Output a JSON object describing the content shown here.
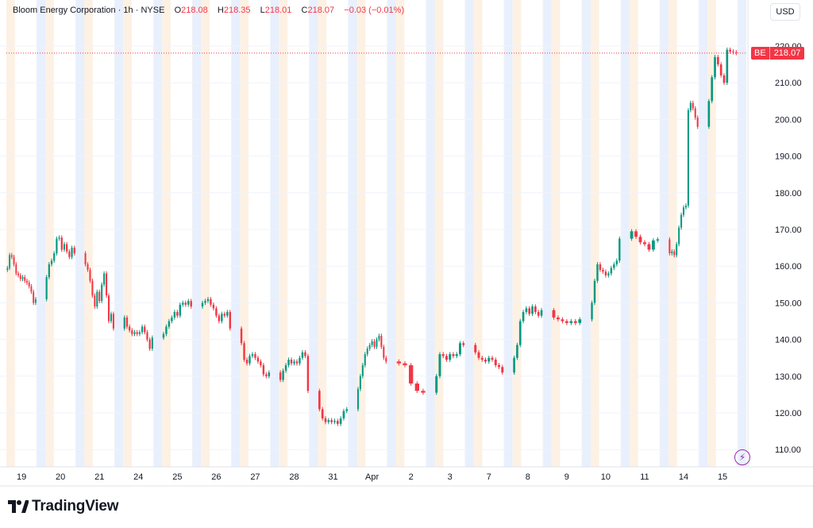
{
  "legend": {
    "name": "Bloom Energy Corporation",
    "interval": "1h",
    "exchange": "NYSE",
    "open_label": "O",
    "open": "218.08",
    "high_label": "H",
    "high": "218.35",
    "low_label": "L",
    "low": "218.01",
    "close_label": "C",
    "close": "218.07",
    "change": "−0.03 (−0.01%)"
  },
  "currency": "USD",
  "brand": "TradingView",
  "last_price_tag": {
    "symbol": "BE",
    "price": "218.07"
  },
  "colors": {
    "up": "#089981",
    "down": "#f23645",
    "session_pre": "#e8effd",
    "session_post": "#fdf1e4",
    "grid": "#f0f3fa"
  },
  "chart_data": {
    "type": "candlestick",
    "title": "Bloom Energy Corporation",
    "ylim": [
      105,
      222
    ],
    "y_ticks": [
      110,
      120,
      130,
      140,
      150,
      160,
      170,
      180,
      190,
      200,
      210,
      220
    ],
    "y_tick_labels": [
      "110.00",
      "120.00",
      "130.00",
      "140.00",
      "150.00",
      "160.00",
      "170.00",
      "180.00",
      "190.00",
      "200.00",
      "210.00",
      "220.00"
    ],
    "x_tick_labels": [
      "19",
      "20",
      "21",
      "24",
      "25",
      "26",
      "27",
      "28",
      "31",
      "Apr",
      "2",
      "3",
      "7",
      "8",
      "9",
      "10",
      "11",
      "14",
      "15"
    ],
    "last_price": 218.07,
    "sessions_count": 19,
    "days": [
      {
        "label": "19",
        "closes": [
          159.5,
          163.0,
          162.5,
          160.5,
          158.0,
          157.5,
          156.5,
          157.0,
          156.0,
          155.5,
          154.5,
          153.0,
          150.0,
          151.0
        ]
      },
      {
        "label": "20",
        "closes": [
          157.0,
          160.5,
          161.5,
          163.5,
          167.5,
          167.8,
          164.5,
          166.0,
          164.0,
          162.5,
          165.0,
          163.5
        ]
      },
      {
        "label": "21",
        "closes": [
          160.5,
          159.0,
          156.0,
          152.0,
          149.0,
          153.0,
          150.5,
          155.0,
          158.0,
          152.0,
          145.0,
          147.0,
          143.0
        ]
      },
      {
        "label": "24",
        "closes": [
          146.0,
          143.5,
          142.5,
          141.5,
          142.0,
          141.5,
          142.0,
          143.5,
          142.0,
          140.0,
          137.5,
          140.5
        ]
      },
      {
        "label": "25",
        "closes": [
          141.5,
          143.5,
          145.0,
          146.0,
          147.5,
          146.5,
          149.5,
          150.0,
          149.5,
          150.5,
          149.0
        ]
      },
      {
        "label": "26",
        "closes": [
          150.0,
          150.5,
          151.0,
          149.5,
          148.5,
          146.5,
          145.0,
          147.0,
          146.5,
          147.5,
          143.0
        ]
      },
      {
        "label": "27",
        "closes": [
          139.0,
          134.5,
          133.5,
          135.5,
          136.0,
          135.0,
          134.0,
          133.0,
          130.5,
          130.0,
          131.0
        ]
      },
      {
        "label": "28",
        "closes": [
          129.0,
          131.5,
          133.0,
          134.5,
          133.5,
          134.0,
          133.5,
          135.0,
          136.5,
          135.5,
          126.0
        ]
      },
      {
        "label": "31",
        "closes": [
          121.0,
          118.5,
          117.5,
          118.0,
          117.5,
          117.8,
          117.0,
          118.5,
          120.5,
          121.0
        ]
      },
      {
        "label": "Apr",
        "closes": [
          126.5,
          130.0,
          133.0,
          136.0,
          137.5,
          138.5,
          139.5,
          138.0,
          140.0,
          141.0,
          138.0,
          135.0,
          134.0
        ]
      },
      {
        "label": "2",
        "closes": [
          133.5,
          133.0,
          128.0,
          126.0,
          125.5
        ]
      },
      {
        "label": "3",
        "closes": [
          130.0,
          136.0,
          135.5,
          134.5,
          136.0,
          135.5,
          136.0,
          139.0,
          138.5
        ]
      },
      {
        "label": "7",
        "closes": [
          136.5,
          135.0,
          134.5,
          134.0,
          135.0,
          134.5,
          133.0,
          132.5,
          131.0
        ]
      },
      {
        "label": "8",
        "closes": [
          135.0,
          138.5,
          145.0,
          147.5,
          148.5,
          147.0,
          149.0,
          147.5,
          146.5,
          148.0
        ]
      },
      {
        "label": "9",
        "closes": [
          146.0,
          145.5,
          145.0,
          144.5,
          145.0,
          144.5,
          145.5
        ]
      },
      {
        "label": "10",
        "closes": [
          150.0,
          156.0,
          160.5,
          159.0,
          158.5,
          157.5,
          158.0,
          159.5,
          160.5,
          161.5,
          167.5
        ]
      },
      {
        "label": "11",
        "closes": [
          169.5,
          168.0,
          166.5,
          166.0,
          164.5,
          167.0,
          167.3
        ]
      },
      {
        "label": "14",
        "closes": [
          163.5,
          164.0,
          163.0,
          166.0,
          170.5,
          174.0,
          176.0,
          176.5,
          202.5,
          204.5,
          203.0,
          200.5,
          198.0
        ]
      },
      {
        "label": "15",
        "closes": [
          205.0,
          211.5,
          217.0,
          215.0,
          212.0,
          210.0,
          219.0,
          218.5,
          218.3,
          218.07
        ]
      }
    ]
  }
}
